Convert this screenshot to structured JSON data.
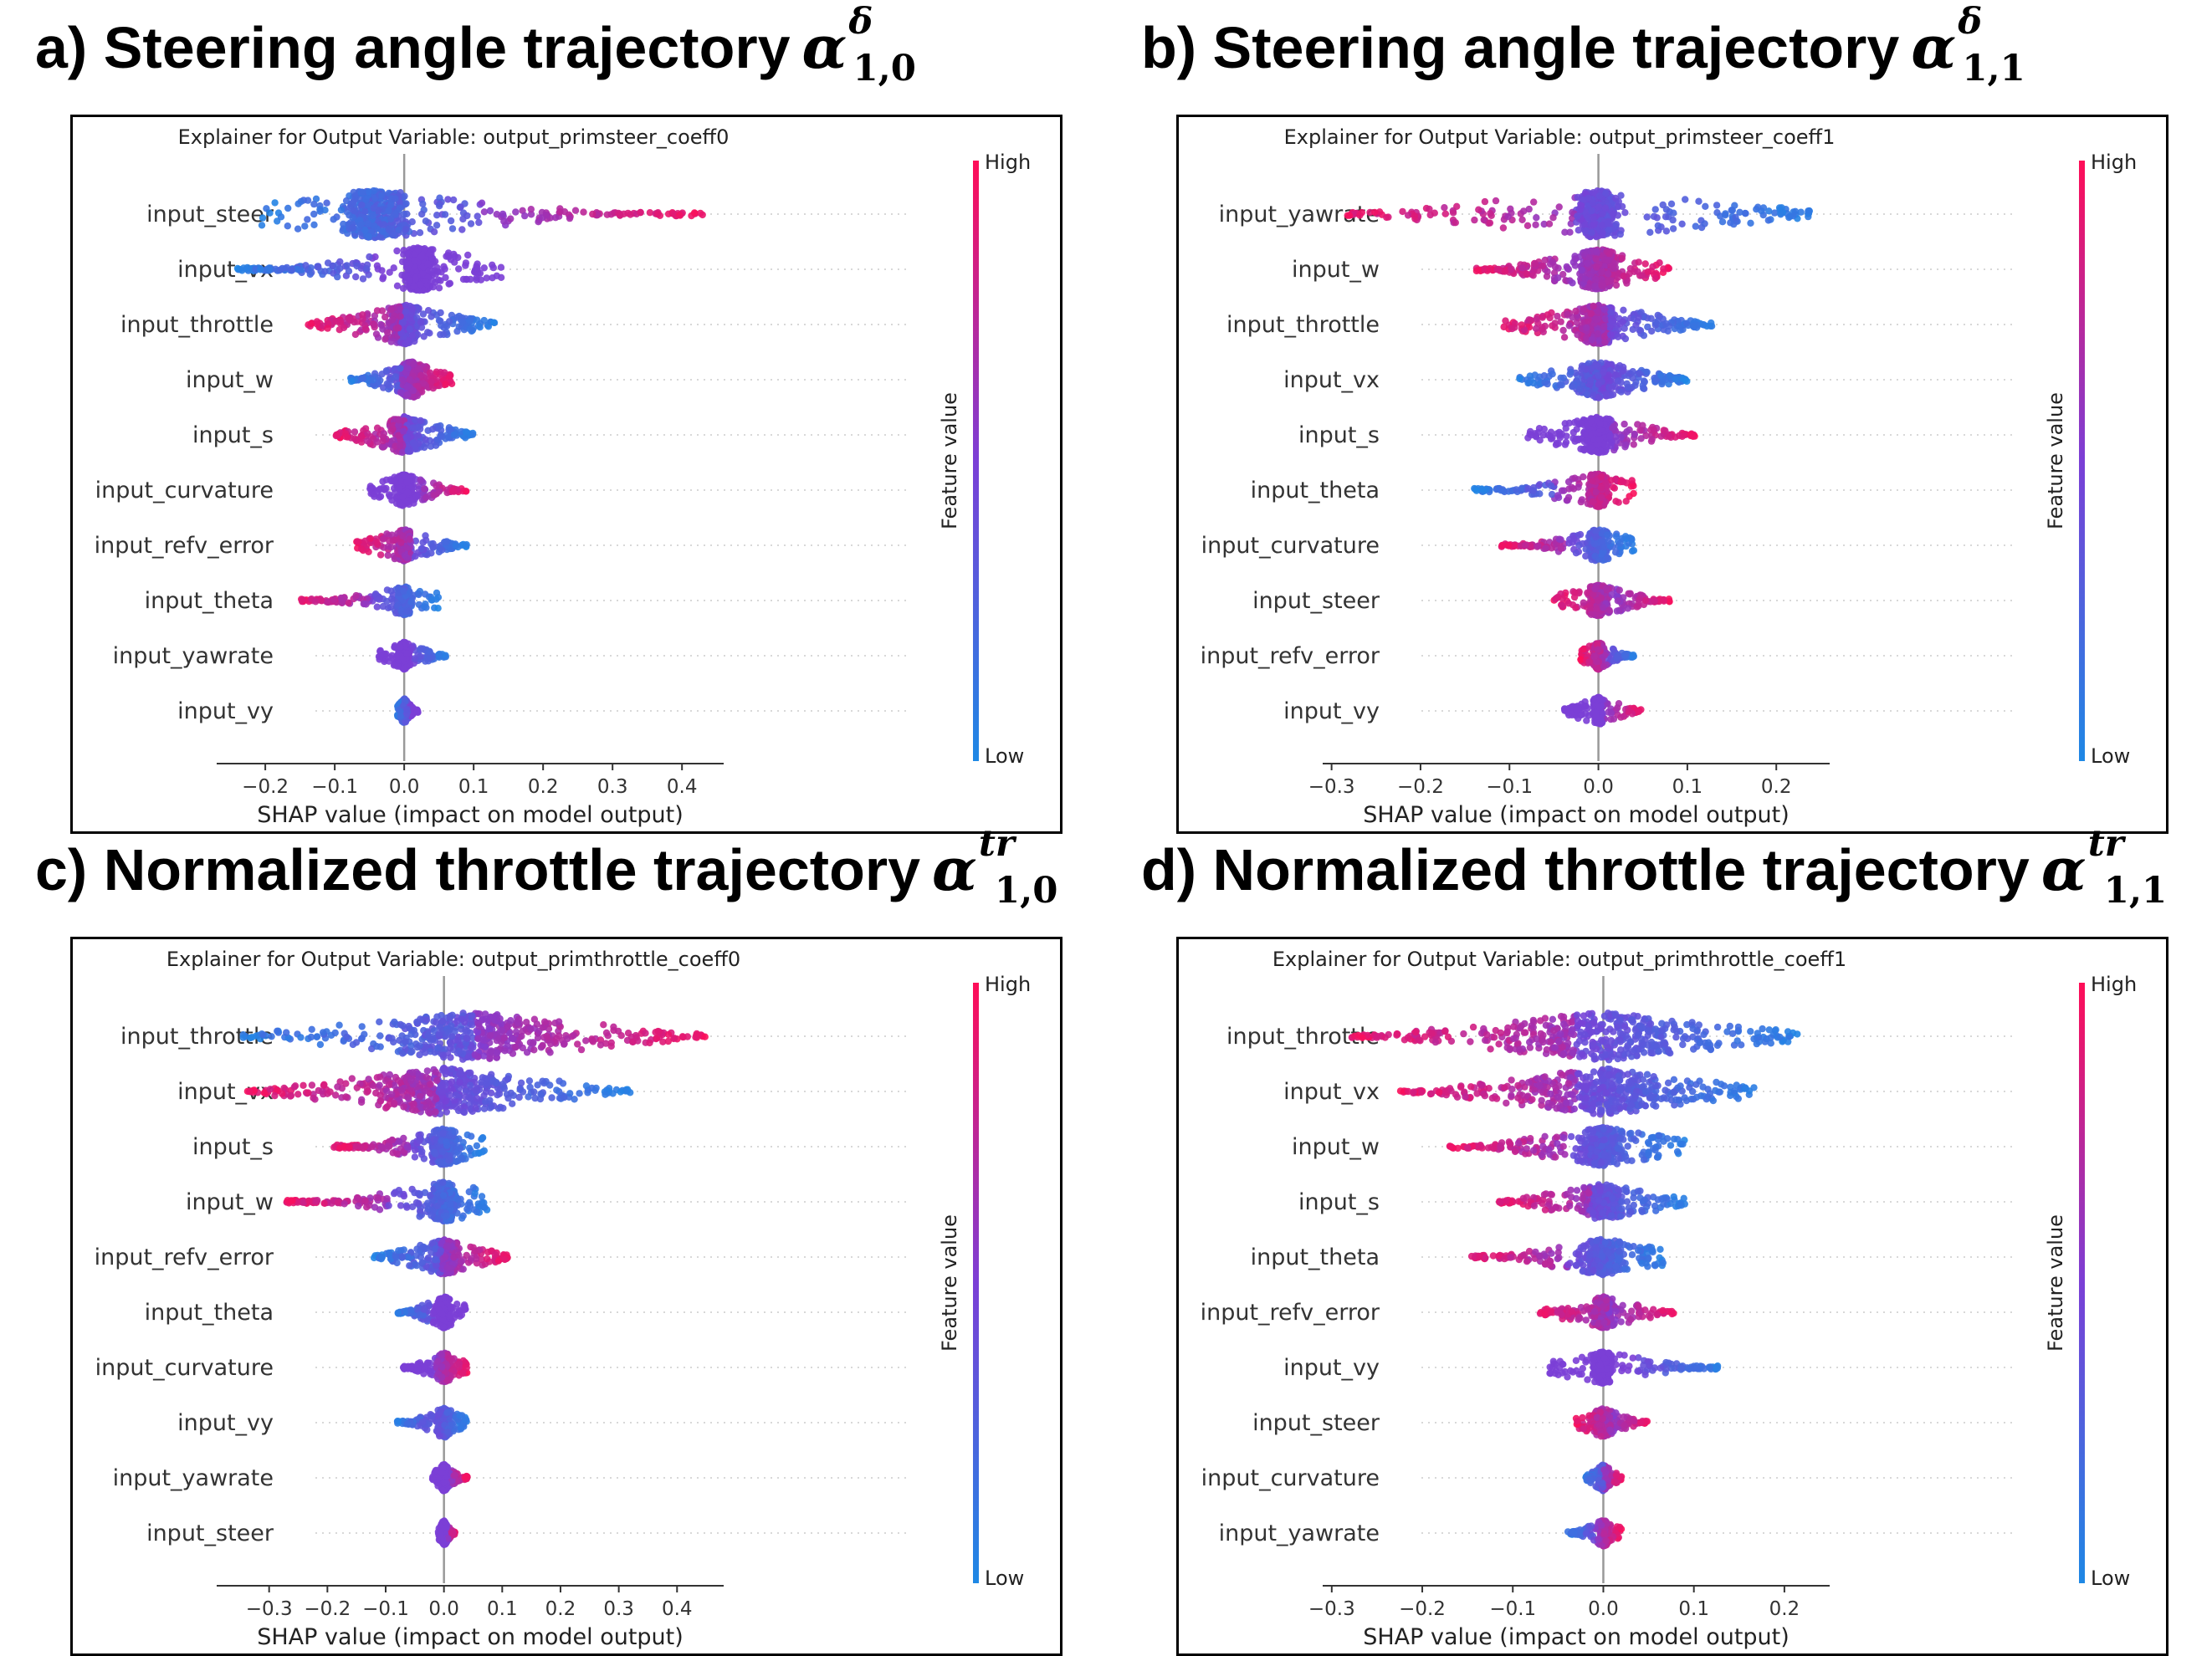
{
  "colors": {
    "low": "#1e88e5",
    "mid": "#7b3fd6",
    "high": "#ff0d57",
    "grid": "#cccccc",
    "zero_line": "#999999"
  },
  "panels": [
    {
      "heading": "a) Steering angle trajectory",
      "symbol": {
        "base": "α",
        "sup": "δ",
        "sub": "1,0"
      },
      "chart_data": {
        "type": "scatter",
        "title": "Explainer for Output Variable: output_primsteer_coeff0",
        "xlabel": "SHAP value (impact on model output)",
        "xlim": [
          -0.27,
          0.46
        ],
        "xticks": [
          -0.2,
          -0.1,
          0.0,
          0.1,
          0.2,
          0.3,
          0.4
        ],
        "xtick_labels": [
          "−0.2",
          "−0.1",
          "0.0",
          "0.1",
          "0.2",
          "0.3",
          "0.4"
        ],
        "colorbar": {
          "label": "Feature value",
          "high": "High",
          "low": "Low"
        },
        "features": [
          {
            "name": "input_steer",
            "min": -0.21,
            "max": 0.43,
            "center": -0.04,
            "core": 0.04,
            "density": 1.0,
            "left_color": "low",
            "right_color": "high"
          },
          {
            "name": "input_vx",
            "min": -0.24,
            "max": 0.14,
            "center": 0.02,
            "core": 0.02,
            "density": 0.85,
            "left_color": "low",
            "right_color": "mid"
          },
          {
            "name": "input_throttle",
            "min": -0.14,
            "max": 0.13,
            "center": 0.0,
            "core": 0.02,
            "density": 0.7,
            "left_color": "high",
            "right_color": "low"
          },
          {
            "name": "input_w",
            "min": -0.08,
            "max": 0.07,
            "center": 0.01,
            "core": 0.02,
            "density": 0.6,
            "left_color": "low",
            "right_color": "high"
          },
          {
            "name": "input_s",
            "min": -0.1,
            "max": 0.1,
            "center": 0.0,
            "core": 0.02,
            "density": 0.6,
            "left_color": "high",
            "right_color": "low"
          },
          {
            "name": "input_curvature",
            "min": -0.05,
            "max": 0.09,
            "center": 0.0,
            "core": 0.01,
            "density": 0.45,
            "left_color": "mid",
            "right_color": "high"
          },
          {
            "name": "input_refv_error",
            "min": -0.07,
            "max": 0.09,
            "center": 0.0,
            "core": 0.01,
            "density": 0.45,
            "left_color": "high",
            "right_color": "low"
          },
          {
            "name": "input_theta",
            "min": -0.15,
            "max": 0.05,
            "center": 0.0,
            "core": 0.01,
            "density": 0.35,
            "left_color": "high",
            "right_color": "low"
          },
          {
            "name": "input_yawrate",
            "min": -0.04,
            "max": 0.06,
            "center": 0.0,
            "core": 0.01,
            "density": 0.3,
            "left_color": "mid",
            "right_color": "low"
          },
          {
            "name": "input_vy",
            "min": -0.01,
            "max": 0.02,
            "center": 0.0,
            "core": 0.005,
            "density": 0.25,
            "left_color": "low",
            "right_color": "mid"
          }
        ]
      }
    },
    {
      "heading": "b) Steering angle trajectory",
      "symbol": {
        "base": "α",
        "sup": "δ",
        "sub": "1,1"
      },
      "chart_data": {
        "type": "scatter",
        "title": "Explainer for Output Variable: output_primsteer_coeff1",
        "xlabel": "SHAP value (impact on model output)",
        "xlim": [
          -0.31,
          0.26
        ],
        "xticks": [
          -0.3,
          -0.2,
          -0.1,
          0.0,
          0.1,
          0.2
        ],
        "xtick_labels": [
          "−0.3",
          "−0.2",
          "−0.1",
          "0.0",
          "0.1",
          "0.2"
        ],
        "colorbar": {
          "label": "Feature value",
          "high": "High",
          "low": "Low"
        },
        "features": [
          {
            "name": "input_yawrate",
            "min": -0.29,
            "max": 0.24,
            "center": 0.0,
            "core": 0.02,
            "density": 0.95,
            "left_color": "high",
            "right_color": "low"
          },
          {
            "name": "input_w",
            "min": -0.14,
            "max": 0.08,
            "center": 0.0,
            "core": 0.02,
            "density": 0.75,
            "left_color": "high",
            "right_color": "high"
          },
          {
            "name": "input_throttle",
            "min": -0.11,
            "max": 0.13,
            "center": 0.0,
            "core": 0.02,
            "density": 0.7,
            "left_color": "high",
            "right_color": "low"
          },
          {
            "name": "input_vx",
            "min": -0.09,
            "max": 0.1,
            "center": 0.0,
            "core": 0.02,
            "density": 0.6,
            "left_color": "low",
            "right_color": "low"
          },
          {
            "name": "input_s",
            "min": -0.08,
            "max": 0.11,
            "center": 0.0,
            "core": 0.02,
            "density": 0.6,
            "left_color": "mid",
            "right_color": "high"
          },
          {
            "name": "input_theta",
            "min": -0.14,
            "max": 0.04,
            "center": 0.0,
            "core": 0.01,
            "density": 0.5,
            "left_color": "low",
            "right_color": "high"
          },
          {
            "name": "input_curvature",
            "min": -0.11,
            "max": 0.04,
            "center": 0.0,
            "core": 0.01,
            "density": 0.45,
            "left_color": "high",
            "right_color": "low"
          },
          {
            "name": "input_steer",
            "min": -0.05,
            "max": 0.08,
            "center": 0.0,
            "core": 0.01,
            "density": 0.45,
            "left_color": "high",
            "right_color": "high"
          },
          {
            "name": "input_refv_error",
            "min": -0.02,
            "max": 0.04,
            "center": 0.0,
            "core": 0.005,
            "density": 0.3,
            "left_color": "high",
            "right_color": "low"
          },
          {
            "name": "input_vy",
            "min": -0.04,
            "max": 0.05,
            "center": 0.0,
            "core": 0.005,
            "density": 0.3,
            "left_color": "mid",
            "right_color": "high"
          }
        ]
      }
    },
    {
      "heading": "c) Normalized throttle trajectory",
      "symbol": {
        "base": "α",
        "sup": "tr",
        "sub": "1,0"
      },
      "chart_data": {
        "type": "scatter",
        "title": "Explainer for Output Variable: output_primthrottle_coeff0",
        "xlabel": "SHAP value (impact on model output)",
        "xlim": [
          -0.39,
          0.48
        ],
        "xticks": [
          -0.3,
          -0.2,
          -0.1,
          0.0,
          0.1,
          0.2,
          0.3,
          0.4
        ],
        "xtick_labels": [
          "−0.3",
          "−0.2",
          "−0.1",
          "0.0",
          "0.1",
          "0.2",
          "0.3",
          "0.4"
        ],
        "colorbar": {
          "label": "Feature value",
          "high": "High",
          "low": "Low"
        },
        "features": [
          {
            "name": "input_throttle",
            "min": -0.35,
            "max": 0.45,
            "center": 0.05,
            "core": 0.12,
            "density": 1.0,
            "left_color": "low",
            "right_color": "high"
          },
          {
            "name": "input_vx",
            "min": -0.34,
            "max": 0.32,
            "center": 0.0,
            "core": 0.1,
            "density": 0.95,
            "left_color": "high",
            "right_color": "low"
          },
          {
            "name": "input_s",
            "min": -0.19,
            "max": 0.07,
            "center": 0.0,
            "core": 0.02,
            "density": 0.6,
            "left_color": "high",
            "right_color": "low"
          },
          {
            "name": "input_w",
            "min": -0.27,
            "max": 0.08,
            "center": 0.0,
            "core": 0.02,
            "density": 0.7,
            "left_color": "high",
            "right_color": "low"
          },
          {
            "name": "input_refv_error",
            "min": -0.12,
            "max": 0.11,
            "center": 0.0,
            "core": 0.02,
            "density": 0.55,
            "left_color": "low",
            "right_color": "high"
          },
          {
            "name": "input_theta",
            "min": -0.08,
            "max": 0.04,
            "center": 0.0,
            "core": 0.01,
            "density": 0.45,
            "left_color": "low",
            "right_color": "mid"
          },
          {
            "name": "input_curvature",
            "min": -0.07,
            "max": 0.04,
            "center": 0.0,
            "core": 0.01,
            "density": 0.4,
            "left_color": "mid",
            "right_color": "high"
          },
          {
            "name": "input_vy",
            "min": -0.08,
            "max": 0.04,
            "center": 0.0,
            "core": 0.01,
            "density": 0.4,
            "left_color": "low",
            "right_color": "low"
          },
          {
            "name": "input_yawrate",
            "min": -0.02,
            "max": 0.04,
            "center": 0.0,
            "core": 0.005,
            "density": 0.3,
            "left_color": "mid",
            "right_color": "high"
          },
          {
            "name": "input_steer",
            "min": -0.01,
            "max": 0.02,
            "center": 0.0,
            "core": 0.005,
            "density": 0.25,
            "left_color": "mid",
            "right_color": "high"
          }
        ]
      }
    },
    {
      "heading": "d) Normalized throttle trajectory",
      "symbol": {
        "base": "α",
        "sup": "tr",
        "sub": "1,1"
      },
      "chart_data": {
        "type": "scatter",
        "title": "Explainer for Output Variable: output_primthrottle_coeff1",
        "xlabel": "SHAP value (impact on model output)",
        "xlim": [
          -0.31,
          0.25
        ],
        "xticks": [
          -0.3,
          -0.2,
          -0.1,
          0.0,
          0.1,
          0.2
        ],
        "xtick_labels": [
          "−0.3",
          "−0.2",
          "−0.1",
          "0.0",
          "0.1",
          "0.2"
        ],
        "colorbar": {
          "label": "Feature value",
          "high": "High",
          "low": "Low"
        },
        "features": [
          {
            "name": "input_throttle",
            "min": -0.28,
            "max": 0.22,
            "center": 0.0,
            "core": 0.1,
            "density": 1.0,
            "left_color": "high",
            "right_color": "low"
          },
          {
            "name": "input_vx",
            "min": -0.23,
            "max": 0.17,
            "center": 0.0,
            "core": 0.08,
            "density": 0.95,
            "left_color": "high",
            "right_color": "low"
          },
          {
            "name": "input_w",
            "min": -0.17,
            "max": 0.09,
            "center": 0.0,
            "core": 0.02,
            "density": 0.7,
            "left_color": "high",
            "right_color": "low"
          },
          {
            "name": "input_s",
            "min": -0.12,
            "max": 0.09,
            "center": 0.0,
            "core": 0.02,
            "density": 0.6,
            "left_color": "high",
            "right_color": "low"
          },
          {
            "name": "input_theta",
            "min": -0.15,
            "max": 0.07,
            "center": 0.0,
            "core": 0.02,
            "density": 0.6,
            "left_color": "high",
            "right_color": "low"
          },
          {
            "name": "input_refv_error",
            "min": -0.07,
            "max": 0.08,
            "center": 0.0,
            "core": 0.01,
            "density": 0.45,
            "left_color": "high",
            "right_color": "high"
          },
          {
            "name": "input_vy",
            "min": -0.06,
            "max": 0.13,
            "center": 0.0,
            "core": 0.01,
            "density": 0.45,
            "left_color": "mid",
            "right_color": "low"
          },
          {
            "name": "input_steer",
            "min": -0.03,
            "max": 0.05,
            "center": 0.0,
            "core": 0.01,
            "density": 0.35,
            "left_color": "high",
            "right_color": "high"
          },
          {
            "name": "input_curvature",
            "min": -0.02,
            "max": 0.02,
            "center": 0.0,
            "core": 0.005,
            "density": 0.3,
            "left_color": "low",
            "right_color": "high"
          },
          {
            "name": "input_yawrate",
            "min": -0.04,
            "max": 0.02,
            "center": 0.0,
            "core": 0.005,
            "density": 0.3,
            "left_color": "low",
            "right_color": "high"
          }
        ]
      }
    }
  ]
}
